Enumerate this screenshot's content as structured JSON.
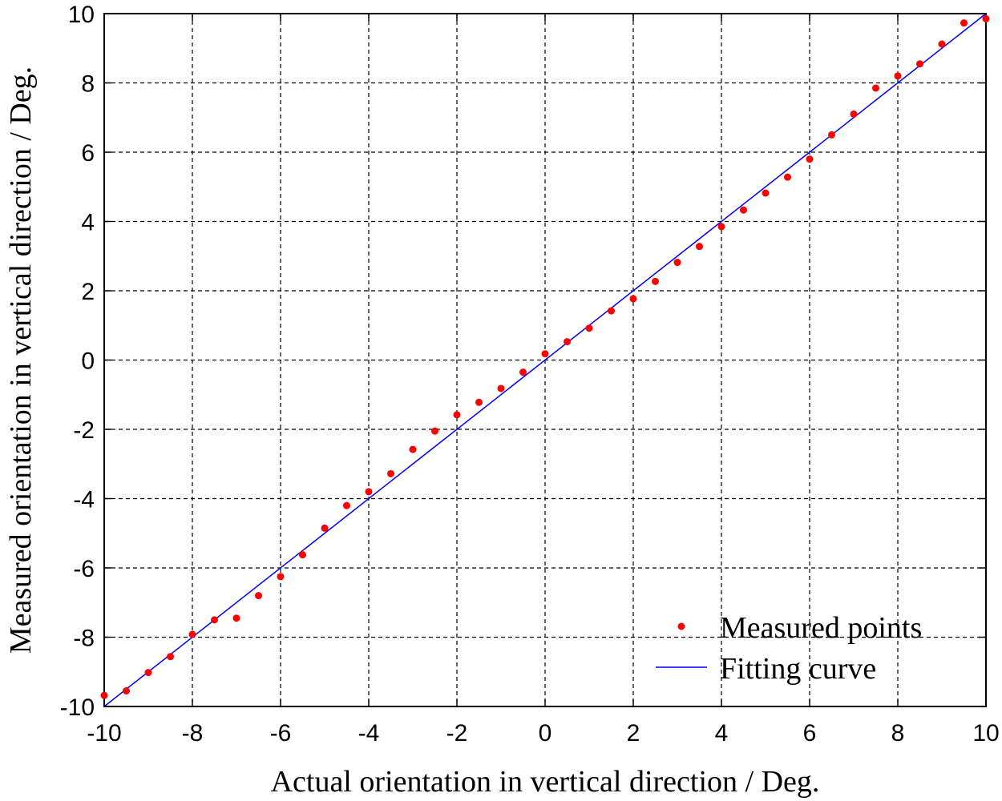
{
  "chart_data": {
    "type": "scatter",
    "title": "",
    "xlabel": "Actual orientation in vertical direction / Deg.",
    "ylabel": "Measured orientation in vertical direction / Deg.",
    "xlim": [
      -10,
      10
    ],
    "ylim": [
      -10,
      10
    ],
    "xticks": [
      -10,
      -8,
      -6,
      -4,
      -2,
      0,
      2,
      4,
      6,
      8,
      10
    ],
    "yticks": [
      -10,
      -8,
      -6,
      -4,
      -2,
      0,
      2,
      4,
      6,
      8,
      10
    ],
    "grid": true,
    "grid_style": "dashed",
    "legend_position": "bottom-right",
    "series": [
      {
        "name": "Measured points",
        "kind": "scatter",
        "color": "#ff0000",
        "x": [
          -10,
          -9.5,
          -9,
          -8.5,
          -8,
          -7.5,
          -7,
          -6.5,
          -6,
          -5.5,
          -5,
          -4.5,
          -4,
          -3.5,
          -3,
          -2.5,
          -2,
          -1.5,
          -1,
          -0.5,
          0,
          0.5,
          1,
          1.5,
          2,
          2.5,
          3,
          3.5,
          4,
          4.5,
          5,
          5.5,
          6,
          6.5,
          7,
          7.5,
          8,
          8.5,
          9,
          9.5,
          10
        ],
        "y": [
          -9.68,
          -9.55,
          -9.02,
          -8.56,
          -7.92,
          -7.5,
          -7.45,
          -6.8,
          -6.25,
          -5.62,
          -4.85,
          -4.2,
          -3.8,
          -3.28,
          -2.58,
          -2.05,
          -1.58,
          -1.22,
          -0.82,
          -0.35,
          0.18,
          0.53,
          0.92,
          1.42,
          1.77,
          2.27,
          2.82,
          3.28,
          3.85,
          4.33,
          4.82,
          5.28,
          5.8,
          6.5,
          7.1,
          7.85,
          8.2,
          8.55,
          9.12,
          9.73,
          9.85
        ]
      },
      {
        "name": "Fitting curve",
        "kind": "line",
        "color": "#0000ff",
        "x": [
          -10,
          10
        ],
        "y": [
          -10,
          10
        ]
      }
    ]
  }
}
